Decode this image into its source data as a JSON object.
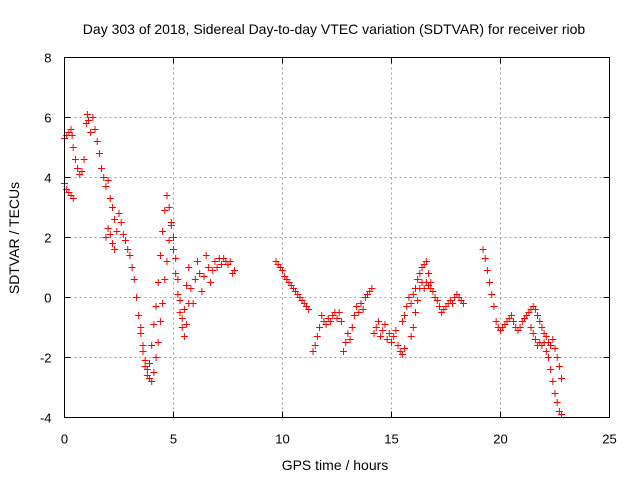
{
  "chart_data": {
    "type": "scatter",
    "title": "Day 303 of 2018, Sidereal Day-to-day VTEC variation (SDTVAR) for receiver riob",
    "xlabel": "GPS time / hours",
    "ylabel": "SDTVAR / TECUs",
    "xlim": [
      0,
      25
    ],
    "ylim": [
      -4,
      8
    ],
    "xticks": [
      0,
      5,
      10,
      15,
      20,
      25
    ],
    "yticks": [
      -4,
      -2,
      0,
      2,
      4,
      6,
      8
    ],
    "xtick_labels": [
      "0",
      "5",
      "10",
      "15",
      "20",
      "25"
    ],
    "ytick_labels": [
      "-4",
      "-2",
      "0",
      "2",
      "4",
      "6",
      "8"
    ],
    "grid": true,
    "marker": "plus",
    "marker_color": "#ff0000",
    "series": [
      {
        "name": "riob",
        "segments": [
          [
            [
              0.0,
              3.8
            ],
            [
              0.1,
              3.6
            ],
            [
              0.2,
              3.5
            ],
            [
              0.3,
              3.4
            ],
            [
              0.4,
              3.3
            ]
          ],
          [
            [
              0.0,
              5.3
            ],
            [
              0.1,
              5.4
            ],
            [
              0.2,
              5.5
            ],
            [
              0.3,
              5.6
            ],
            [
              0.35,
              5.4
            ],
            [
              0.4,
              5.0
            ],
            [
              0.5,
              4.6
            ],
            [
              0.6,
              4.3
            ],
            [
              0.7,
              4.1
            ],
            [
              0.8,
              4.2
            ],
            [
              0.9,
              4.6
            ],
            [
              1.0,
              5.8
            ],
            [
              1.05,
              6.1
            ],
            [
              1.1,
              5.9
            ],
            [
              1.2,
              5.5
            ],
            [
              1.3,
              6.0
            ],
            [
              1.4,
              5.6
            ],
            [
              1.5,
              5.2
            ],
            [
              1.6,
              4.8
            ],
            [
              1.7,
              4.3
            ],
            [
              1.8,
              4.0
            ],
            [
              1.9,
              3.7
            ],
            [
              2.0,
              3.9
            ],
            [
              2.1,
              3.3
            ],
            [
              2.2,
              3.0
            ],
            [
              2.3,
              2.6
            ],
            [
              2.4,
              2.2
            ],
            [
              2.5,
              2.8
            ],
            [
              2.6,
              2.5
            ],
            [
              2.7,
              2.1
            ],
            [
              2.8,
              1.9
            ],
            [
              2.9,
              1.6
            ],
            [
              3.0,
              1.4
            ],
            [
              3.1,
              1.0
            ]
          ],
          [
            [
              1.9,
              2.0
            ],
            [
              2.0,
              2.3
            ],
            [
              2.1,
              2.1
            ],
            [
              2.2,
              1.8
            ],
            [
              2.3,
              1.6
            ]
          ],
          [
            [
              3.2,
              0.6
            ],
            [
              3.3,
              0.0
            ],
            [
              3.4,
              -0.6
            ],
            [
              3.5,
              -1.2
            ],
            [
              3.6,
              -1.8
            ],
            [
              3.7,
              -2.3
            ],
            [
              3.8,
              -2.6
            ],
            [
              3.9,
              -2.2
            ],
            [
              4.0,
              -1.6
            ],
            [
              4.1,
              -0.9
            ],
            [
              4.2,
              -0.3
            ],
            [
              4.3,
              0.5
            ],
            [
              4.4,
              1.4
            ],
            [
              4.5,
              2.2
            ],
            [
              4.6,
              2.9
            ],
            [
              4.7,
              3.4
            ],
            [
              4.8,
              3.0
            ],
            [
              4.9,
              2.4
            ],
            [
              5.0,
              1.6
            ],
            [
              5.1,
              0.8
            ],
            [
              5.2,
              0.1
            ],
            [
              5.3,
              -0.5
            ],
            [
              5.4,
              -1.0
            ],
            [
              5.5,
              -0.4
            ],
            [
              5.6,
              0.4
            ],
            [
              5.7,
              1.0
            ],
            [
              5.8,
              0.3
            ],
            [
              5.9,
              -0.2
            ],
            [
              6.0,
              0.6
            ],
            [
              6.1,
              1.2
            ],
            [
              6.2,
              0.8
            ],
            [
              6.3,
              0.2
            ],
            [
              6.4,
              0.7
            ],
            [
              6.5,
              1.4
            ],
            [
              6.6,
              1.0
            ],
            [
              6.7,
              0.5
            ],
            [
              6.8,
              0.9
            ],
            [
              6.9,
              1.2
            ],
            [
              7.0,
              1.0
            ],
            [
              7.1,
              1.3
            ],
            [
              7.2,
              1.1
            ],
            [
              7.3,
              1.3
            ],
            [
              7.4,
              1.2
            ],
            [
              7.5,
              1.1
            ],
            [
              7.6,
              1.2
            ],
            [
              7.7,
              0.8
            ],
            [
              7.8,
              0.9
            ]
          ],
          [
            [
              3.5,
              -1.0
            ],
            [
              3.6,
              -1.6
            ],
            [
              3.7,
              -2.1
            ],
            [
              3.8,
              -2.4
            ],
            [
              3.9,
              -2.7
            ],
            [
              4.0,
              -2.8
            ],
            [
              4.1,
              -2.5
            ],
            [
              4.2,
              -2.0
            ],
            [
              4.3,
              -1.5
            ],
            [
              4.4,
              -0.8
            ],
            [
              4.5,
              -0.2
            ],
            [
              4.6,
              0.6
            ],
            [
              4.7,
              1.2
            ],
            [
              4.8,
              1.9
            ],
            [
              4.9,
              2.5
            ],
            [
              5.0,
              2.0
            ],
            [
              5.1,
              1.3
            ],
            [
              5.2,
              0.6
            ],
            [
              5.3,
              -0.1
            ],
            [
              5.4,
              -0.7
            ],
            [
              5.5,
              -1.3
            ],
            [
              5.6,
              -0.9
            ],
            [
              5.7,
              -0.2
            ]
          ],
          [
            [
              9.7,
              1.2
            ],
            [
              9.8,
              1.1
            ],
            [
              9.9,
              1.0
            ],
            [
              10.0,
              0.9
            ],
            [
              10.1,
              0.7
            ],
            [
              10.2,
              0.6
            ],
            [
              10.3,
              0.5
            ],
            [
              10.4,
              0.4
            ],
            [
              10.5,
              0.3
            ],
            [
              10.6,
              0.2
            ],
            [
              10.7,
              0.1
            ],
            [
              10.8,
              0.0
            ],
            [
              10.9,
              -0.1
            ],
            [
              11.0,
              -0.2
            ],
            [
              11.1,
              -0.3
            ],
            [
              11.2,
              -0.4
            ]
          ],
          [
            [
              11.4,
              -1.8
            ],
            [
              11.5,
              -1.6
            ],
            [
              11.6,
              -1.3
            ],
            [
              11.7,
              -1.0
            ],
            [
              11.8,
              -0.6
            ],
            [
              11.9,
              -0.8
            ],
            [
              12.0,
              -0.9
            ],
            [
              12.1,
              -0.7
            ],
            [
              12.2,
              -0.8
            ],
            [
              12.3,
              -0.6
            ],
            [
              12.4,
              -0.5
            ],
            [
              12.5,
              -0.7
            ],
            [
              12.6,
              -0.5
            ],
            [
              12.7,
              -0.8
            ]
          ],
          [
            [
              12.8,
              -1.8
            ],
            [
              12.9,
              -1.5
            ],
            [
              13.0,
              -1.2
            ],
            [
              13.1,
              -1.4
            ],
            [
              13.2,
              -1.0
            ],
            [
              13.3,
              -0.6
            ],
            [
              13.4,
              -0.3
            ],
            [
              13.5,
              -0.5
            ],
            [
              13.6,
              -0.2
            ],
            [
              13.7,
              -0.4
            ],
            [
              13.8,
              0.0
            ],
            [
              13.9,
              0.1
            ],
            [
              14.0,
              0.2
            ],
            [
              14.1,
              0.3
            ]
          ],
          [
            [
              14.2,
              -1.2
            ],
            [
              14.3,
              -1.0
            ],
            [
              14.4,
              -0.8
            ],
            [
              14.5,
              -1.3
            ],
            [
              14.6,
              -1.1
            ],
            [
              14.7,
              -0.9
            ],
            [
              14.8,
              -1.4
            ],
            [
              14.9,
              -1.2
            ],
            [
              15.0,
              -1.5
            ],
            [
              15.1,
              -1.3
            ],
            [
              15.2,
              -1.1
            ],
            [
              15.3,
              -1.6
            ],
            [
              15.4,
              -1.8
            ],
            [
              15.5,
              -1.9
            ],
            [
              15.6,
              -1.7
            ]
          ],
          [
            [
              15.5,
              -0.8
            ],
            [
              15.6,
              -0.6
            ],
            [
              15.7,
              -0.3
            ],
            [
              15.8,
              0.0
            ],
            [
              15.9,
              -0.2
            ],
            [
              16.0,
              0.1
            ],
            [
              16.1,
              0.3
            ],
            [
              16.2,
              0.6
            ],
            [
              16.3,
              0.8
            ],
            [
              16.4,
              1.0
            ],
            [
              16.5,
              1.1
            ],
            [
              16.6,
              1.2
            ],
            [
              16.7,
              0.8
            ],
            [
              16.8,
              0.5
            ]
          ],
          [
            [
              15.9,
              -1.3
            ],
            [
              16.0,
              -1.0
            ],
            [
              16.1,
              -0.5
            ],
            [
              16.2,
              -0.1
            ],
            [
              16.3,
              0.3
            ],
            [
              16.4,
              0.5
            ],
            [
              16.5,
              0.3
            ],
            [
              16.6,
              0.5
            ],
            [
              16.7,
              0.4
            ],
            [
              16.8,
              0.3
            ],
            [
              16.9,
              0.2
            ],
            [
              17.0,
              0.0
            ],
            [
              17.1,
              -0.1
            ],
            [
              17.2,
              -0.3
            ],
            [
              17.3,
              -0.5
            ],
            [
              17.4,
              -0.4
            ],
            [
              17.5,
              -0.3
            ],
            [
              17.6,
              -0.2
            ],
            [
              17.7,
              -0.1
            ],
            [
              17.8,
              -0.2
            ],
            [
              17.9,
              0.0
            ],
            [
              18.0,
              0.1
            ],
            [
              18.1,
              0.0
            ],
            [
              18.2,
              -0.1
            ],
            [
              18.3,
              -0.2
            ]
          ],
          [
            [
              19.2,
              1.6
            ],
            [
              19.3,
              1.3
            ],
            [
              19.4,
              0.9
            ],
            [
              19.5,
              0.5
            ],
            [
              19.6,
              0.1
            ],
            [
              19.7,
              -0.3
            ],
            [
              19.8,
              -0.8
            ],
            [
              19.9,
              -1.0
            ],
            [
              20.0,
              -1.1
            ],
            [
              20.1,
              -1.0
            ],
            [
              20.2,
              -0.9
            ],
            [
              20.3,
              -0.8
            ],
            [
              20.4,
              -0.7
            ],
            [
              20.5,
              -0.6
            ],
            [
              20.6,
              -0.8
            ],
            [
              20.7,
              -1.0
            ],
            [
              20.8,
              -1.1
            ],
            [
              20.9,
              -1.0
            ],
            [
              21.0,
              -0.8
            ],
            [
              21.1,
              -0.7
            ],
            [
              21.2,
              -0.6
            ],
            [
              21.3,
              -0.5
            ],
            [
              21.4,
              -0.4
            ],
            [
              21.5,
              -0.3
            ],
            [
              21.6,
              -0.4
            ],
            [
              21.7,
              -0.6
            ],
            [
              21.8,
              -0.8
            ],
            [
              21.9,
              -1.0
            ],
            [
              22.0,
              -1.2
            ],
            [
              22.1,
              -1.3
            ],
            [
              22.2,
              -1.5
            ],
            [
              22.3,
              -1.6
            ],
            [
              22.4,
              -1.4
            ],
            [
              22.5,
              -1.7
            ],
            [
              22.6,
              -2.0
            ],
            [
              22.7,
              -2.3
            ],
            [
              22.8,
              -2.7
            ]
          ],
          [
            [
              21.4,
              -1.0
            ],
            [
              21.5,
              -1.2
            ],
            [
              21.6,
              -1.4
            ],
            [
              21.7,
              -1.6
            ],
            [
              21.8,
              -1.5
            ],
            [
              21.9,
              -1.6
            ],
            [
              22.0,
              -1.5
            ],
            [
              22.1,
              -1.8
            ],
            [
              22.2,
              -2.0
            ],
            [
              22.3,
              -2.4
            ],
            [
              22.4,
              -2.8
            ],
            [
              22.5,
              -3.2
            ],
            [
              22.6,
              -3.5
            ],
            [
              22.7,
              -3.8
            ],
            [
              22.8,
              -3.9
            ]
          ]
        ]
      }
    ]
  }
}
